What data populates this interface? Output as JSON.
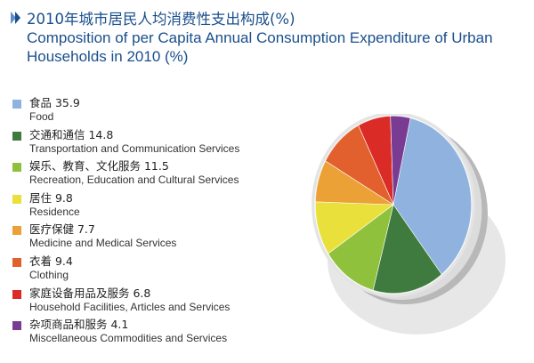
{
  "title": {
    "cn": "2010年城市居民人均消费性支出构成(%)",
    "en_line1": "Composition of per Capita Annual Consumption Expenditure of Urban",
    "en_line2": "Households in 2010 (%)"
  },
  "chart_data": {
    "type": "pie",
    "title": "2010年城市居民人均消费性支出构成(%) Composition of per Capita Annual Consumption Expenditure of Urban Households in 2010 (%)",
    "unit": "%",
    "legend_position": "left",
    "slices": [
      {
        "label_cn": "食品",
        "label_en": "Food",
        "value": 35.9,
        "color": "#8fb3de"
      },
      {
        "label_cn": "交通和通信",
        "label_en": "Transportation and Communication Services",
        "value": 14.8,
        "color": "#3f7b3e"
      },
      {
        "label_cn": "娱乐、教育、文化服务",
        "label_en": "Recreation, Education and Cultural Services",
        "value": 11.5,
        "color": "#8fc13d"
      },
      {
        "label_cn": "居住",
        "label_en": "Residence",
        "value": 9.8,
        "color": "#e9e03c"
      },
      {
        "label_cn": "医疗保健",
        "label_en": "Medicine and Medical Services",
        "value": 7.7,
        "color": "#eba135"
      },
      {
        "label_cn": "衣着",
        "label_en": "Clothing",
        "value": 9.4,
        "color": "#e2602d"
      },
      {
        "label_cn": "家庭设备用品及服务",
        "label_en": "Household Facilities, Articles and Services",
        "value": 6.8,
        "color": "#db2b27"
      },
      {
        "label_cn": "杂项商品和服务",
        "label_en": "Miscellaneous Commodities and Services",
        "value": 4.1,
        "color": "#7a3c93"
      }
    ]
  }
}
